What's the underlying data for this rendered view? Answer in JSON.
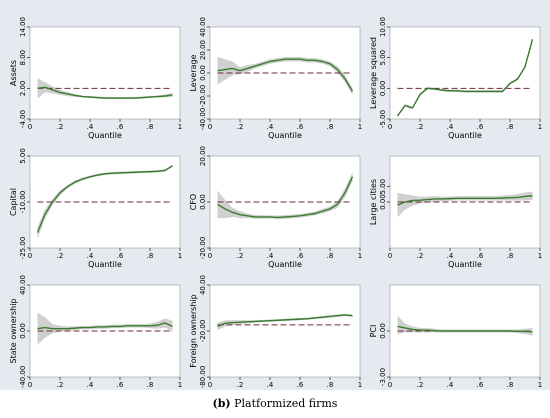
{
  "caption": {
    "label": "(b)",
    "text": "Platformized firms"
  },
  "colors": {
    "figure_background": "#e4eaf0",
    "plot_background": "#ffffff",
    "estimate_line": "#3a7a2e",
    "confidence_band": "#c8c8c8",
    "reference_line": "#6b2a3a"
  },
  "chart_data": [
    {
      "type": "line",
      "ylabel": "Assets",
      "xlabel": "Quantile",
      "ylim": [
        -4,
        14
      ],
      "yticks": [
        "-4.00",
        "2.00",
        "8.00",
        "14.00"
      ],
      "xticks": [
        "0",
        ".2",
        ".4",
        ".6",
        ".8",
        "1"
      ],
      "reference_line": 2.0,
      "x": [
        0.05,
        0.1,
        0.15,
        0.2,
        0.25,
        0.3,
        0.35,
        0.4,
        0.45,
        0.5,
        0.55,
        0.6,
        0.65,
        0.7,
        0.75,
        0.8,
        0.85,
        0.9,
        0.95
      ],
      "series": [
        {
          "values": [
            2.0,
            2.2,
            1.7,
            1.2,
            0.9,
            0.6,
            0.4,
            0.3,
            0.2,
            0.1,
            0.1,
            0.1,
            0.1,
            0.1,
            0.2,
            0.3,
            0.4,
            0.5,
            0.7
          ],
          "band_lower": [
            0.0,
            1.2,
            1.0,
            0.7,
            0.5,
            0.3,
            0.2,
            0.1,
            0.0,
            -0.1,
            -0.1,
            -0.1,
            -0.1,
            -0.1,
            0.0,
            0.1,
            0.2,
            0.2,
            0.3
          ],
          "band_upper": [
            4.0,
            3.2,
            2.4,
            1.7,
            1.3,
            0.9,
            0.6,
            0.5,
            0.4,
            0.3,
            0.3,
            0.3,
            0.3,
            0.3,
            0.4,
            0.5,
            0.6,
            0.8,
            1.1
          ]
        }
      ]
    },
    {
      "type": "line",
      "ylabel": "Leverage",
      "xlabel": "Quantile",
      "ylim": [
        -40,
        40
      ],
      "yticks": [
        "-40.00",
        "-20.00",
        "0.00",
        "20.00",
        "40.00"
      ],
      "xticks": [
        "0",
        ".2",
        ".4",
        ".6",
        ".8",
        "1"
      ],
      "reference_line": 0,
      "x": [
        0.05,
        0.1,
        0.15,
        0.2,
        0.25,
        0.3,
        0.35,
        0.4,
        0.45,
        0.5,
        0.55,
        0.6,
        0.65,
        0.7,
        0.75,
        0.8,
        0.85,
        0.9,
        0.95
      ],
      "series": [
        {
          "values": [
            2.0,
            3.0,
            4.0,
            2.0,
            4.0,
            6.0,
            8.0,
            10.0,
            11.0,
            12.0,
            12.0,
            12.0,
            11.0,
            11.0,
            10.0,
            8.0,
            3.0,
            -5.0,
            -16.0
          ],
          "band_lower": [
            -10.0,
            -6.0,
            -2.0,
            -1.0,
            1.0,
            4.0,
            6.0,
            8.0,
            9.0,
            10.0,
            10.0,
            10.0,
            9.0,
            9.0,
            8.0,
            6.0,
            0.0,
            -8.0,
            -19.0
          ],
          "band_upper": [
            14.0,
            12.0,
            10.0,
            5.0,
            7.0,
            8.0,
            10.0,
            12.0,
            13.0,
            14.0,
            14.0,
            14.0,
            13.0,
            13.0,
            12.0,
            10.0,
            6.0,
            -2.0,
            -13.0
          ]
        }
      ]
    },
    {
      "type": "line",
      "ylabel": "Leverage squared",
      "xlabel": "Quantile",
      "ylim": [
        -5,
        10
      ],
      "yticks": [
        "-5.00",
        "0.00",
        "5.00",
        "10.00"
      ],
      "xticks": [
        "0",
        ".2",
        ".4",
        ".6",
        ".8",
        "1"
      ],
      "reference_line": 0,
      "x": [
        0.05,
        0.1,
        0.15,
        0.2,
        0.25,
        0.3,
        0.35,
        0.4,
        0.45,
        0.5,
        0.55,
        0.6,
        0.65,
        0.7,
        0.75,
        0.8,
        0.85,
        0.9,
        0.95
      ],
      "series": [
        {
          "values": [
            -4.5,
            -2.8,
            -3.2,
            -1.0,
            0.0,
            -0.1,
            -0.3,
            -0.4,
            -0.4,
            -0.5,
            -0.5,
            -0.5,
            -0.5,
            -0.5,
            -0.5,
            0.8,
            1.5,
            3.5,
            8.0
          ],
          "band_lower": [
            -4.7,
            -3.0,
            -3.4,
            -1.2,
            -0.2,
            -0.3,
            -0.5,
            -0.6,
            -0.6,
            -0.7,
            -0.7,
            -0.7,
            -0.7,
            -0.7,
            -0.7,
            0.6,
            1.3,
            3.3,
            7.8
          ],
          "band_upper": [
            -4.3,
            -2.6,
            -3.0,
            -0.8,
            0.2,
            0.1,
            -0.1,
            -0.2,
            -0.2,
            -0.3,
            -0.3,
            -0.3,
            -0.3,
            -0.3,
            -0.3,
            1.0,
            1.7,
            3.7,
            8.2
          ]
        }
      ]
    },
    {
      "type": "line",
      "ylabel": "Capital",
      "xlabel": "Quantile",
      "ylim": [
        -25,
        5
      ],
      "yticks": [
        "-25.00",
        "-10.00",
        "5.00"
      ],
      "xticks": [
        "0",
        ".2",
        ".4",
        ".6",
        ".8",
        "1"
      ],
      "reference_line": -10,
      "x": [
        0.05,
        0.1,
        0.15,
        0.2,
        0.25,
        0.3,
        0.35,
        0.4,
        0.45,
        0.5,
        0.55,
        0.6,
        0.65,
        0.7,
        0.75,
        0.8,
        0.85,
        0.9,
        0.95
      ],
      "series": [
        {
          "values": [
            -20.0,
            -14.0,
            -10.0,
            -7.0,
            -5.0,
            -3.5,
            -2.5,
            -1.8,
            -1.2,
            -0.8,
            -0.6,
            -0.5,
            -0.4,
            -0.3,
            -0.2,
            -0.1,
            0.0,
            0.3,
            1.8
          ],
          "band_lower": [
            -22.0,
            -15.5,
            -11.0,
            -7.8,
            -5.6,
            -4.0,
            -3.0,
            -2.2,
            -1.6,
            -1.2,
            -1.0,
            -0.9,
            -0.8,
            -0.7,
            -0.6,
            -0.5,
            -0.4,
            -0.1,
            1.4
          ],
          "band_upper": [
            -18.0,
            -12.5,
            -9.0,
            -6.2,
            -4.4,
            -3.0,
            -2.0,
            -1.4,
            -0.8,
            -0.4,
            -0.2,
            -0.1,
            0.0,
            0.1,
            0.2,
            0.3,
            0.4,
            0.7,
            2.2
          ]
        }
      ]
    },
    {
      "type": "line",
      "ylabel": "CFO",
      "xlabel": "Quantile",
      "ylim": [
        -20,
        20
      ],
      "yticks": [
        "-20.00",
        "0.00",
        "20.00"
      ],
      "xticks": [
        "0",
        ".2",
        ".4",
        ".6",
        ".8",
        "1"
      ],
      "reference_line": 0,
      "x": [
        0.05,
        0.1,
        0.15,
        0.2,
        0.25,
        0.3,
        0.35,
        0.4,
        0.45,
        0.5,
        0.55,
        0.6,
        0.65,
        0.7,
        0.75,
        0.8,
        0.85,
        0.9,
        0.95
      ],
      "series": [
        {
          "values": [
            -1.0,
            -3.0,
            -4.5,
            -5.5,
            -6.0,
            -6.5,
            -6.5,
            -6.5,
            -6.7,
            -6.5,
            -6.3,
            -6.0,
            -5.5,
            -5.0,
            -4.0,
            -3.0,
            -1.0,
            4.0,
            11.0
          ],
          "band_lower": [
            -7.0,
            -7.0,
            -6.5,
            -7.0,
            -7.0,
            -7.3,
            -7.3,
            -7.2,
            -7.5,
            -7.3,
            -7.1,
            -6.8,
            -6.3,
            -5.8,
            -5.0,
            -4.0,
            -2.5,
            2.0,
            9.0
          ],
          "band_upper": [
            5.0,
            1.0,
            -2.5,
            -4.0,
            -5.0,
            -5.7,
            -5.7,
            -5.8,
            -5.9,
            -5.7,
            -5.5,
            -5.2,
            -4.7,
            -4.2,
            -3.0,
            -2.0,
            0.5,
            6.0,
            13.0
          ]
        }
      ]
    },
    {
      "type": "line",
      "ylabel": "Large cities",
      "xlabel": "Quantile",
      "ylim": [
        -15,
        15
      ],
      "yticks": [
        "0.00",
        "5.00"
      ],
      "xticks": [
        "0",
        ".2",
        ".4",
        ".6",
        ".8",
        "1"
      ],
      "reference_line": 0,
      "x": [
        0.05,
        0.1,
        0.15,
        0.2,
        0.25,
        0.3,
        0.35,
        0.4,
        0.45,
        0.5,
        0.55,
        0.6,
        0.65,
        0.7,
        0.75,
        0.8,
        0.85,
        0.9,
        0.95
      ],
      "series": [
        {
          "values": [
            -1.0,
            0.0,
            0.5,
            0.6,
            0.8,
            1.0,
            1.0,
            1.1,
            1.2,
            1.2,
            1.2,
            1.2,
            1.2,
            1.2,
            1.3,
            1.4,
            1.5,
            1.8,
            2.0
          ],
          "band_lower": [
            -5.0,
            -2.5,
            -1.2,
            -0.5,
            -0.2,
            0.1,
            0.3,
            0.4,
            0.5,
            0.5,
            0.5,
            0.5,
            0.5,
            0.5,
            0.5,
            0.5,
            0.4,
            0.5,
            0.6
          ],
          "band_upper": [
            3.0,
            2.5,
            2.2,
            1.7,
            1.8,
            1.9,
            1.7,
            1.8,
            1.9,
            1.9,
            1.9,
            1.9,
            1.9,
            1.9,
            2.1,
            2.3,
            2.6,
            3.1,
            3.4
          ]
        }
      ]
    },
    {
      "type": "line",
      "ylabel": "State ownership",
      "xlabel": "Quantile",
      "ylim": [
        -40,
        40
      ],
      "yticks": [
        "-40.00",
        "0.00",
        "40.00"
      ],
      "xticks": [
        "0",
        ".2",
        ".4",
        ".6",
        ".8",
        "1"
      ],
      "reference_line": 0,
      "x": [
        0.05,
        0.1,
        0.15,
        0.2,
        0.25,
        0.3,
        0.35,
        0.4,
        0.45,
        0.5,
        0.55,
        0.6,
        0.65,
        0.7,
        0.75,
        0.8,
        0.85,
        0.9,
        0.95
      ],
      "series": [
        {
          "values": [
            2.0,
            3.0,
            2.0,
            2.0,
            2.0,
            2.5,
            3.0,
            3.0,
            3.5,
            3.5,
            4.0,
            4.0,
            4.5,
            4.5,
            4.5,
            4.5,
            5.0,
            7.0,
            4.0
          ],
          "band_lower": [
            -12.0,
            -6.0,
            -2.0,
            -0.5,
            0.0,
            1.0,
            1.5,
            1.5,
            2.0,
            2.0,
            2.5,
            2.5,
            3.0,
            3.0,
            3.0,
            2.5,
            2.0,
            3.0,
            -1.0
          ],
          "band_upper": [
            16.0,
            12.0,
            6.0,
            4.5,
            4.0,
            4.0,
            4.5,
            4.5,
            5.0,
            5.0,
            5.5,
            5.5,
            6.0,
            6.0,
            6.0,
            6.5,
            8.0,
            11.0,
            9.0
          ]
        }
      ]
    },
    {
      "type": "line",
      "ylabel": "Foreign ownership",
      "xlabel": "Quantile",
      "ylim": [
        -80,
        40
      ],
      "yticks": [
        "-80.00",
        "-20.00",
        "40.00"
      ],
      "xticks": [
        "0",
        ".2",
        ".4",
        ".6",
        ".8",
        "1"
      ],
      "reference_line": -12,
      "x": [
        0.05,
        0.1,
        0.15,
        0.2,
        0.25,
        0.3,
        0.35,
        0.4,
        0.45,
        0.5,
        0.55,
        0.6,
        0.65,
        0.7,
        0.75,
        0.8,
        0.85,
        0.9,
        0.95
      ],
      "series": [
        {
          "values": [
            -14.0,
            -10.0,
            -9.0,
            -8.5,
            -8.0,
            -7.5,
            -7.0,
            -6.5,
            -6.0,
            -5.5,
            -5.0,
            -4.5,
            -4.0,
            -3.0,
            -2.0,
            -1.0,
            0.0,
            1.0,
            0.0
          ],
          "band_lower": [
            -19.0,
            -14.0,
            -12.0,
            -11.0,
            -10.0,
            -9.0,
            -8.5,
            -8.0,
            -7.5,
            -7.0,
            -6.5,
            -6.0,
            -5.5,
            -4.5,
            -3.5,
            -2.5,
            -1.5,
            -0.5,
            -1.5
          ],
          "band_upper": [
            -9.0,
            -6.0,
            -6.0,
            -6.0,
            -6.0,
            -6.0,
            -5.5,
            -5.0,
            -4.5,
            -4.0,
            -3.5,
            -3.0,
            -2.5,
            -1.5,
            -0.5,
            0.5,
            1.5,
            2.5,
            1.5
          ]
        }
      ]
    },
    {
      "type": "line",
      "ylabel": "PCI",
      "xlabel": "Quantile",
      "ylim": [
        -3,
        3
      ],
      "yticks": [
        "-3.00",
        "0.00"
      ],
      "xticks": [
        "0",
        ".2",
        ".4",
        ".6",
        ".8",
        "1"
      ],
      "reference_line": 0,
      "x": [
        0.05,
        0.1,
        0.15,
        0.2,
        0.25,
        0.3,
        0.35,
        0.4,
        0.45,
        0.5,
        0.55,
        0.6,
        0.65,
        0.7,
        0.75,
        0.8,
        0.85,
        0.9,
        0.95
      ],
      "series": [
        {
          "values": [
            0.3,
            0.2,
            0.1,
            0.05,
            0.05,
            0.02,
            0.0,
            0.0,
            0.0,
            0.0,
            0.0,
            0.0,
            0.0,
            0.0,
            0.0,
            0.0,
            -0.02,
            -0.03,
            -0.05
          ],
          "band_lower": [
            -0.2,
            -0.1,
            -0.1,
            -0.1,
            -0.1,
            -0.1,
            -0.1,
            -0.1,
            -0.1,
            -0.1,
            -0.1,
            -0.1,
            -0.1,
            -0.1,
            -0.1,
            -0.1,
            -0.15,
            -0.2,
            -0.3
          ],
          "band_upper": [
            1.0,
            0.5,
            0.3,
            0.2,
            0.2,
            0.15,
            0.1,
            0.1,
            0.1,
            0.1,
            0.1,
            0.1,
            0.1,
            0.1,
            0.1,
            0.1,
            0.1,
            0.15,
            0.2
          ]
        }
      ]
    }
  ]
}
